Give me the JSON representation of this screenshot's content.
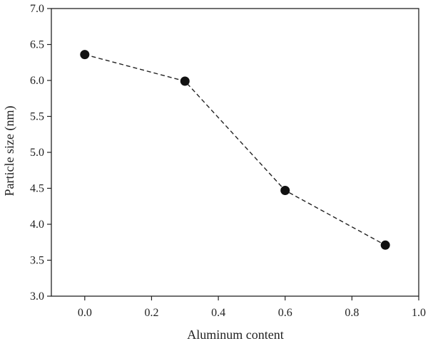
{
  "chart_data": {
    "type": "scatter",
    "title": "",
    "xlabel": "Aluminum content",
    "ylabel": "Particle size (nm)",
    "xlim": [
      -0.1,
      1.0
    ],
    "ylim": [
      3.0,
      7.0
    ],
    "xticks": [
      0.0,
      0.2,
      0.4,
      0.6,
      0.8,
      1.0
    ],
    "xtick_labels": [
      "0.0",
      "0.2",
      "0.4",
      "0.6",
      "0.8",
      "1.0"
    ],
    "yticks": [
      3.0,
      3.5,
      4.0,
      4.5,
      5.0,
      5.5,
      6.0,
      6.5,
      7.0
    ],
    "ytick_labels": [
      "3.0",
      "3.5",
      "4.0",
      "4.5",
      "5.0",
      "5.5",
      "6.0",
      "6.5",
      "7.0"
    ],
    "grid": false,
    "series": [
      {
        "x": [
          0.0,
          0.3,
          0.6,
          0.9
        ],
        "y": [
          6.36,
          5.99,
          4.47,
          3.71
        ],
        "line_style": "dashed",
        "marker": "filled-circle",
        "color": "#111111"
      }
    ]
  }
}
